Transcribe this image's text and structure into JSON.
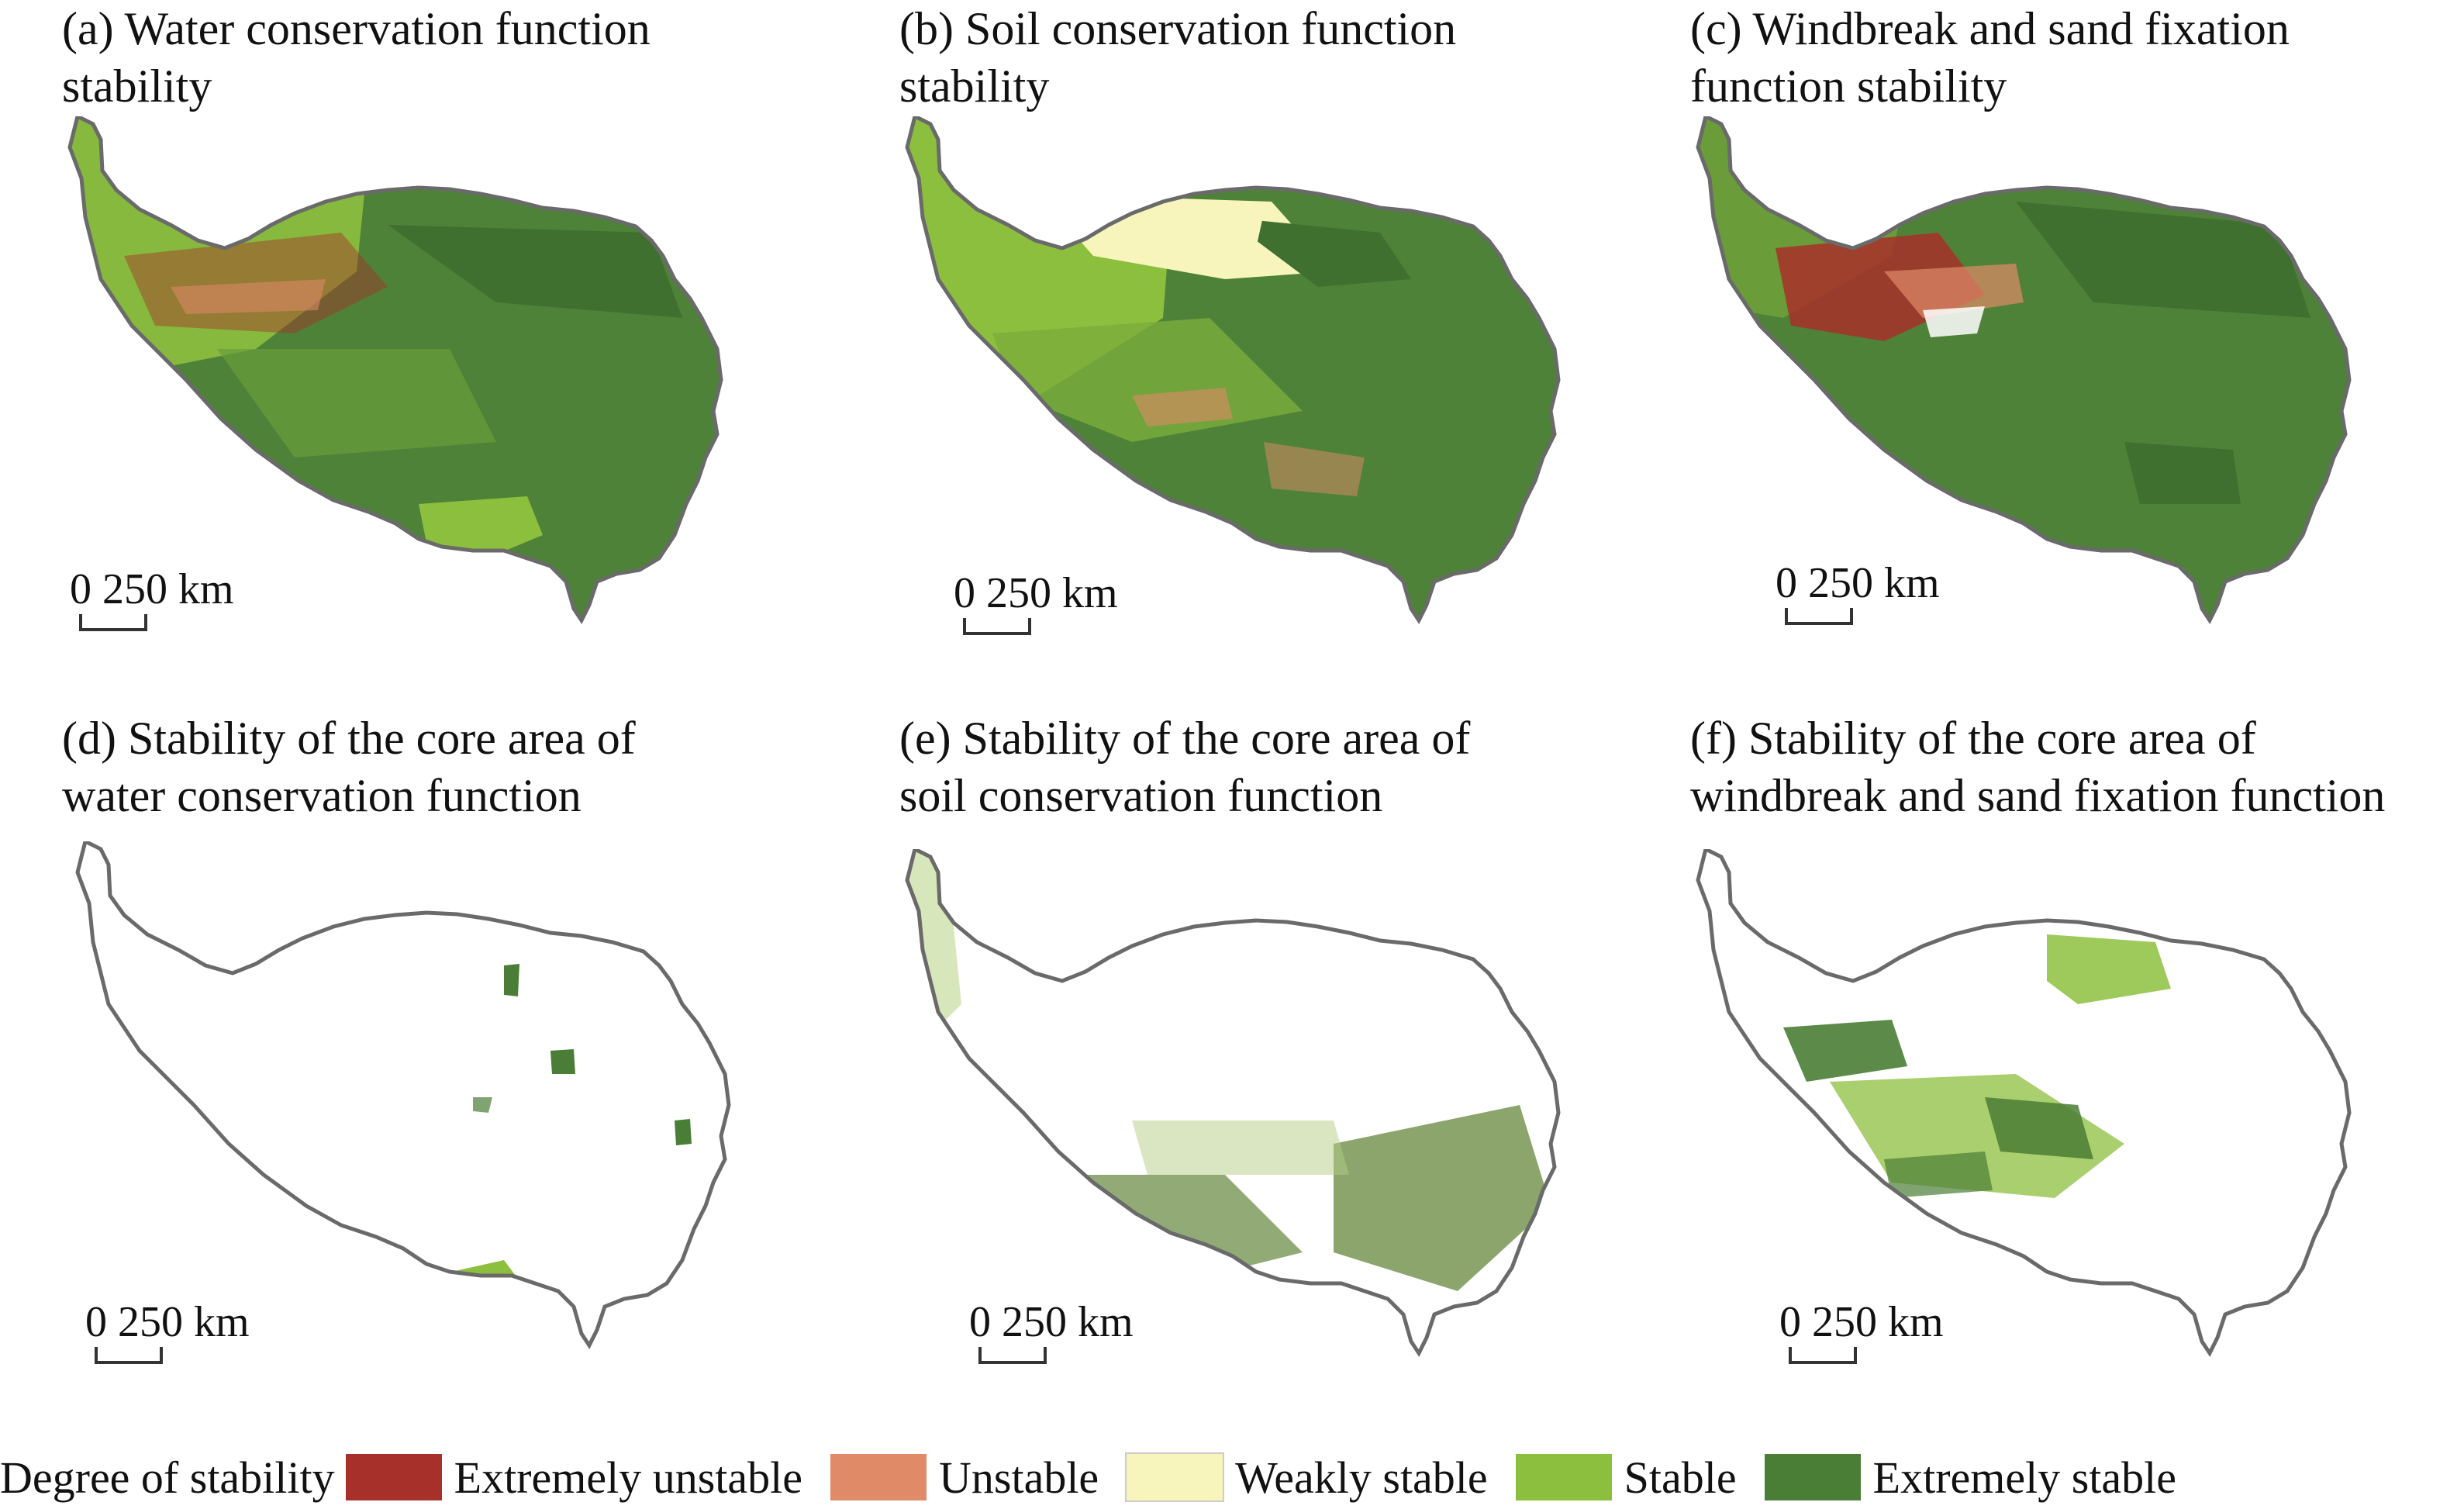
{
  "panels": [
    {
      "title": "(a) Water conservation function\nstability",
      "scale": "0 250 km",
      "style": "full-water"
    },
    {
      "title": "(b) Soil conservation function\nstability",
      "scale": "0 250 km",
      "style": "full-soil"
    },
    {
      "title": "(c) Windbreak and sand fixation\nfunction stability",
      "scale": "0 250 km",
      "style": "full-wind"
    },
    {
      "title": "(d) Stability of the core area of\nwater conservation function",
      "scale": "0 250 km",
      "style": "core-water"
    },
    {
      "title": "(e) Stability of the core area of\nsoil conservation function",
      "scale": "0 250 km",
      "style": "core-soil"
    },
    {
      "title": "(f) Stability of the core area of\nwindbreak and sand fixation function",
      "scale": "0 250 km",
      "style": "core-wind"
    }
  ],
  "legend": {
    "title": "Degree of stability",
    "items": [
      {
        "label": "Extremely unstable",
        "color": "#a8302a"
      },
      {
        "label": "Unstable",
        "color": "#e08a68"
      },
      {
        "label": "Weakly stable",
        "color": "#f7f5bb"
      },
      {
        "label": "Stable",
        "color": "#8dbf3e"
      },
      {
        "label": "Extremely stable",
        "color": "#4a7d35"
      }
    ]
  }
}
